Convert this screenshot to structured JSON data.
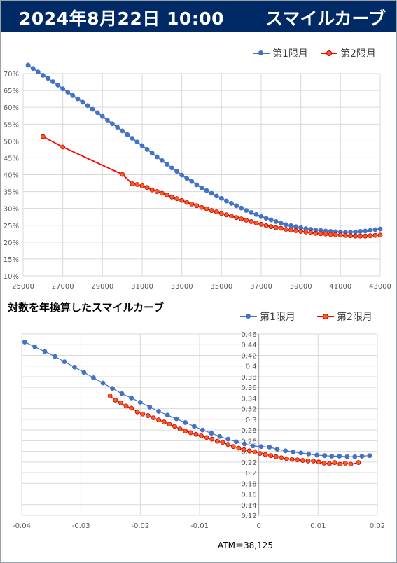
{
  "header": {
    "date": "2024年8月22日 10:00",
    "title": "スマイルカーブ"
  },
  "legend": {
    "s1": "第1限月",
    "s2": "第2限月"
  },
  "colors": {
    "s1": "#4472c4",
    "s2": "#ff0000",
    "s2_fill": "#ff5a1f",
    "header": "#002a66"
  },
  "chart_data": [
    {
      "type": "line",
      "title": "",
      "xlabel": "",
      "ylabel": "",
      "xlim": [
        25000,
        43000
      ],
      "ylim": [
        0.1,
        0.7
      ],
      "x_ticks": [
        "25000",
        "27000",
        "29000",
        "31000",
        "33000",
        "35000",
        "37000",
        "39000",
        "41000",
        "43000"
      ],
      "y_ticks": [
        "10%",
        "15%",
        "20%",
        "25%",
        "30%",
        "35%",
        "40%",
        "45%",
        "50%",
        "55%",
        "60%",
        "65%",
        "70%"
      ],
      "grid": true,
      "legend_position": "top-right",
      "series": [
        {
          "name": "第1限月",
          "x": [
            25250,
            25500,
            25750,
            26000,
            26250,
            26500,
            26750,
            27000,
            27250,
            27500,
            27750,
            28000,
            28250,
            28500,
            28750,
            29000,
            29250,
            29500,
            29750,
            30000,
            30250,
            30500,
            30750,
            31000,
            31250,
            31500,
            31750,
            32000,
            32250,
            32500,
            32750,
            33000,
            33250,
            33500,
            33750,
            34000,
            34250,
            34500,
            34750,
            35000,
            35250,
            35500,
            35750,
            36000,
            36250,
            36500,
            36750,
            37000,
            37250,
            37500,
            37750,
            38000,
            38250,
            38500,
            38750,
            39000,
            39250,
            39500,
            39750,
            40000,
            40250,
            40500,
            40750,
            41000,
            41250,
            41500,
            41750,
            42000,
            42250,
            42500,
            42750,
            43000
          ],
          "y": [
            0.725,
            0.715,
            0.705,
            0.695,
            0.686,
            0.676,
            0.666,
            0.655,
            0.645,
            0.635,
            0.625,
            0.615,
            0.605,
            0.594,
            0.584,
            0.573,
            0.562,
            0.551,
            0.541,
            0.53,
            0.519,
            0.508,
            0.497,
            0.486,
            0.475,
            0.464,
            0.453,
            0.442,
            0.431,
            0.42,
            0.41,
            0.399,
            0.389,
            0.38,
            0.37,
            0.361,
            0.353,
            0.345,
            0.337,
            0.33,
            0.322,
            0.315,
            0.308,
            0.301,
            0.294,
            0.288,
            0.282,
            0.276,
            0.271,
            0.266,
            0.261,
            0.256,
            0.252,
            0.249,
            0.246,
            0.243,
            0.24,
            0.238,
            0.236,
            0.235,
            0.233,
            0.232,
            0.231,
            0.23,
            0.229,
            0.23,
            0.23,
            0.232,
            0.233,
            0.235,
            0.237,
            0.239
          ]
        },
        {
          "name": "第2限月",
          "x": [
            26000,
            27000,
            30000,
            30500,
            30750,
            31000,
            31250,
            31500,
            31750,
            32000,
            32250,
            32500,
            32750,
            33000,
            33250,
            33500,
            33750,
            34000,
            34250,
            34500,
            34750,
            35000,
            35250,
            35500,
            35750,
            36000,
            36250,
            36500,
            36750,
            37000,
            37250,
            37500,
            37750,
            38000,
            38250,
            38500,
            38750,
            39000,
            39250,
            39500,
            39750,
            40000,
            40250,
            40500,
            40750,
            41000,
            41250,
            41500,
            41750,
            42000,
            42250,
            42500,
            42750,
            43000
          ],
          "y": [
            0.513,
            0.482,
            0.401,
            0.373,
            0.371,
            0.367,
            0.362,
            0.355,
            0.35,
            0.345,
            0.34,
            0.334,
            0.329,
            0.324,
            0.318,
            0.313,
            0.308,
            0.303,
            0.299,
            0.294,
            0.29,
            0.285,
            0.281,
            0.277,
            0.273,
            0.269,
            0.265,
            0.261,
            0.257,
            0.253,
            0.249,
            0.246,
            0.243,
            0.241,
            0.238,
            0.236,
            0.234,
            0.232,
            0.23,
            0.228,
            0.226,
            0.225,
            0.224,
            0.223,
            0.222,
            0.221,
            0.22,
            0.219,
            0.218,
            0.218,
            0.218,
            0.219,
            0.22,
            0.221
          ]
        }
      ]
    },
    {
      "type": "line",
      "title": "対数を年換算したスマイルカーブ",
      "xlabel": "",
      "ylabel": "",
      "xlim": [
        -0.04,
        0.02
      ],
      "ylim": [
        0.12,
        0.46
      ],
      "x_ticks": [
        "-0.04",
        "-0.03",
        "-0.02",
        "-0.01",
        "0",
        "0.01",
        "0.02"
      ],
      "y_ticks": [
        "0.12",
        "0.14",
        "0.16",
        "0.18",
        "0.2",
        "0.22",
        "0.24",
        "0.26",
        "0.28",
        "0.3",
        "0.32",
        "0.34",
        "0.36",
        "0.38",
        "0.4",
        "0.42",
        "0.44",
        "0.46"
      ],
      "grid": true,
      "legend_position": "top-right",
      "annotation": "ATM＝38,125",
      "series": [
        {
          "name": "第1限月",
          "x": [
            -0.0395,
            -0.0378,
            -0.0361,
            -0.0344,
            -0.0328,
            -0.0311,
            -0.0295,
            -0.0279,
            -0.0263,
            -0.0247,
            -0.0231,
            -0.0215,
            -0.02,
            -0.0184,
            -0.0169,
            -0.0154,
            -0.0139,
            -0.0124,
            -0.0109,
            -0.0095,
            -0.008,
            -0.0066,
            -0.0052,
            -0.0038,
            -0.0024,
            -0.001,
            0.0004,
            0.0018,
            0.0031,
            0.0045,
            0.0058,
            0.0071,
            0.0084,
            0.0098,
            0.0111,
            0.0123,
            0.0136,
            0.0149,
            0.0162,
            0.0174,
            0.0187
          ],
          "y": [
            0.445,
            0.436,
            0.427,
            0.418,
            0.408,
            0.398,
            0.388,
            0.378,
            0.368,
            0.358,
            0.348,
            0.34,
            0.332,
            0.323,
            0.315,
            0.308,
            0.301,
            0.294,
            0.287,
            0.28,
            0.274,
            0.268,
            0.263,
            0.258,
            0.254,
            0.25,
            0.249,
            0.248,
            0.244,
            0.241,
            0.239,
            0.237,
            0.235,
            0.233,
            0.232,
            0.231,
            0.231,
            0.23,
            0.23,
            0.231,
            0.232
          ]
        },
        {
          "name": "第2限月",
          "x": [
            -0.0251,
            -0.0242,
            -0.0233,
            -0.0224,
            -0.0215,
            -0.0205,
            -0.0196,
            -0.0187,
            -0.0178,
            -0.0169,
            -0.016,
            -0.0151,
            -0.0142,
            -0.0133,
            -0.0124,
            -0.0115,
            -0.0106,
            -0.0097,
            -0.0088,
            -0.0079,
            -0.007,
            -0.0061,
            -0.0052,
            -0.0043,
            -0.0034,
            -0.0025,
            -0.0016,
            -0.0007,
            0.0002,
            0.0011,
            0.002,
            0.0029,
            0.0038,
            0.0047,
            0.0056,
            0.0065,
            0.0074,
            0.0083,
            0.0092,
            0.0101,
            0.011,
            0.0119,
            0.0128,
            0.0137,
            0.0146,
            0.0155,
            0.0168
          ],
          "y": [
            0.344,
            0.336,
            0.331,
            0.325,
            0.321,
            0.314,
            0.31,
            0.307,
            0.303,
            0.299,
            0.295,
            0.291,
            0.287,
            0.282,
            0.278,
            0.275,
            0.272,
            0.269,
            0.266,
            0.263,
            0.259,
            0.257,
            0.253,
            0.249,
            0.246,
            0.243,
            0.241,
            0.239,
            0.236,
            0.234,
            0.232,
            0.23,
            0.228,
            0.226,
            0.225,
            0.224,
            0.223,
            0.222,
            0.222,
            0.22,
            0.218,
            0.217,
            0.219,
            0.216,
            0.218,
            0.216,
            0.219
          ]
        }
      ]
    }
  ]
}
